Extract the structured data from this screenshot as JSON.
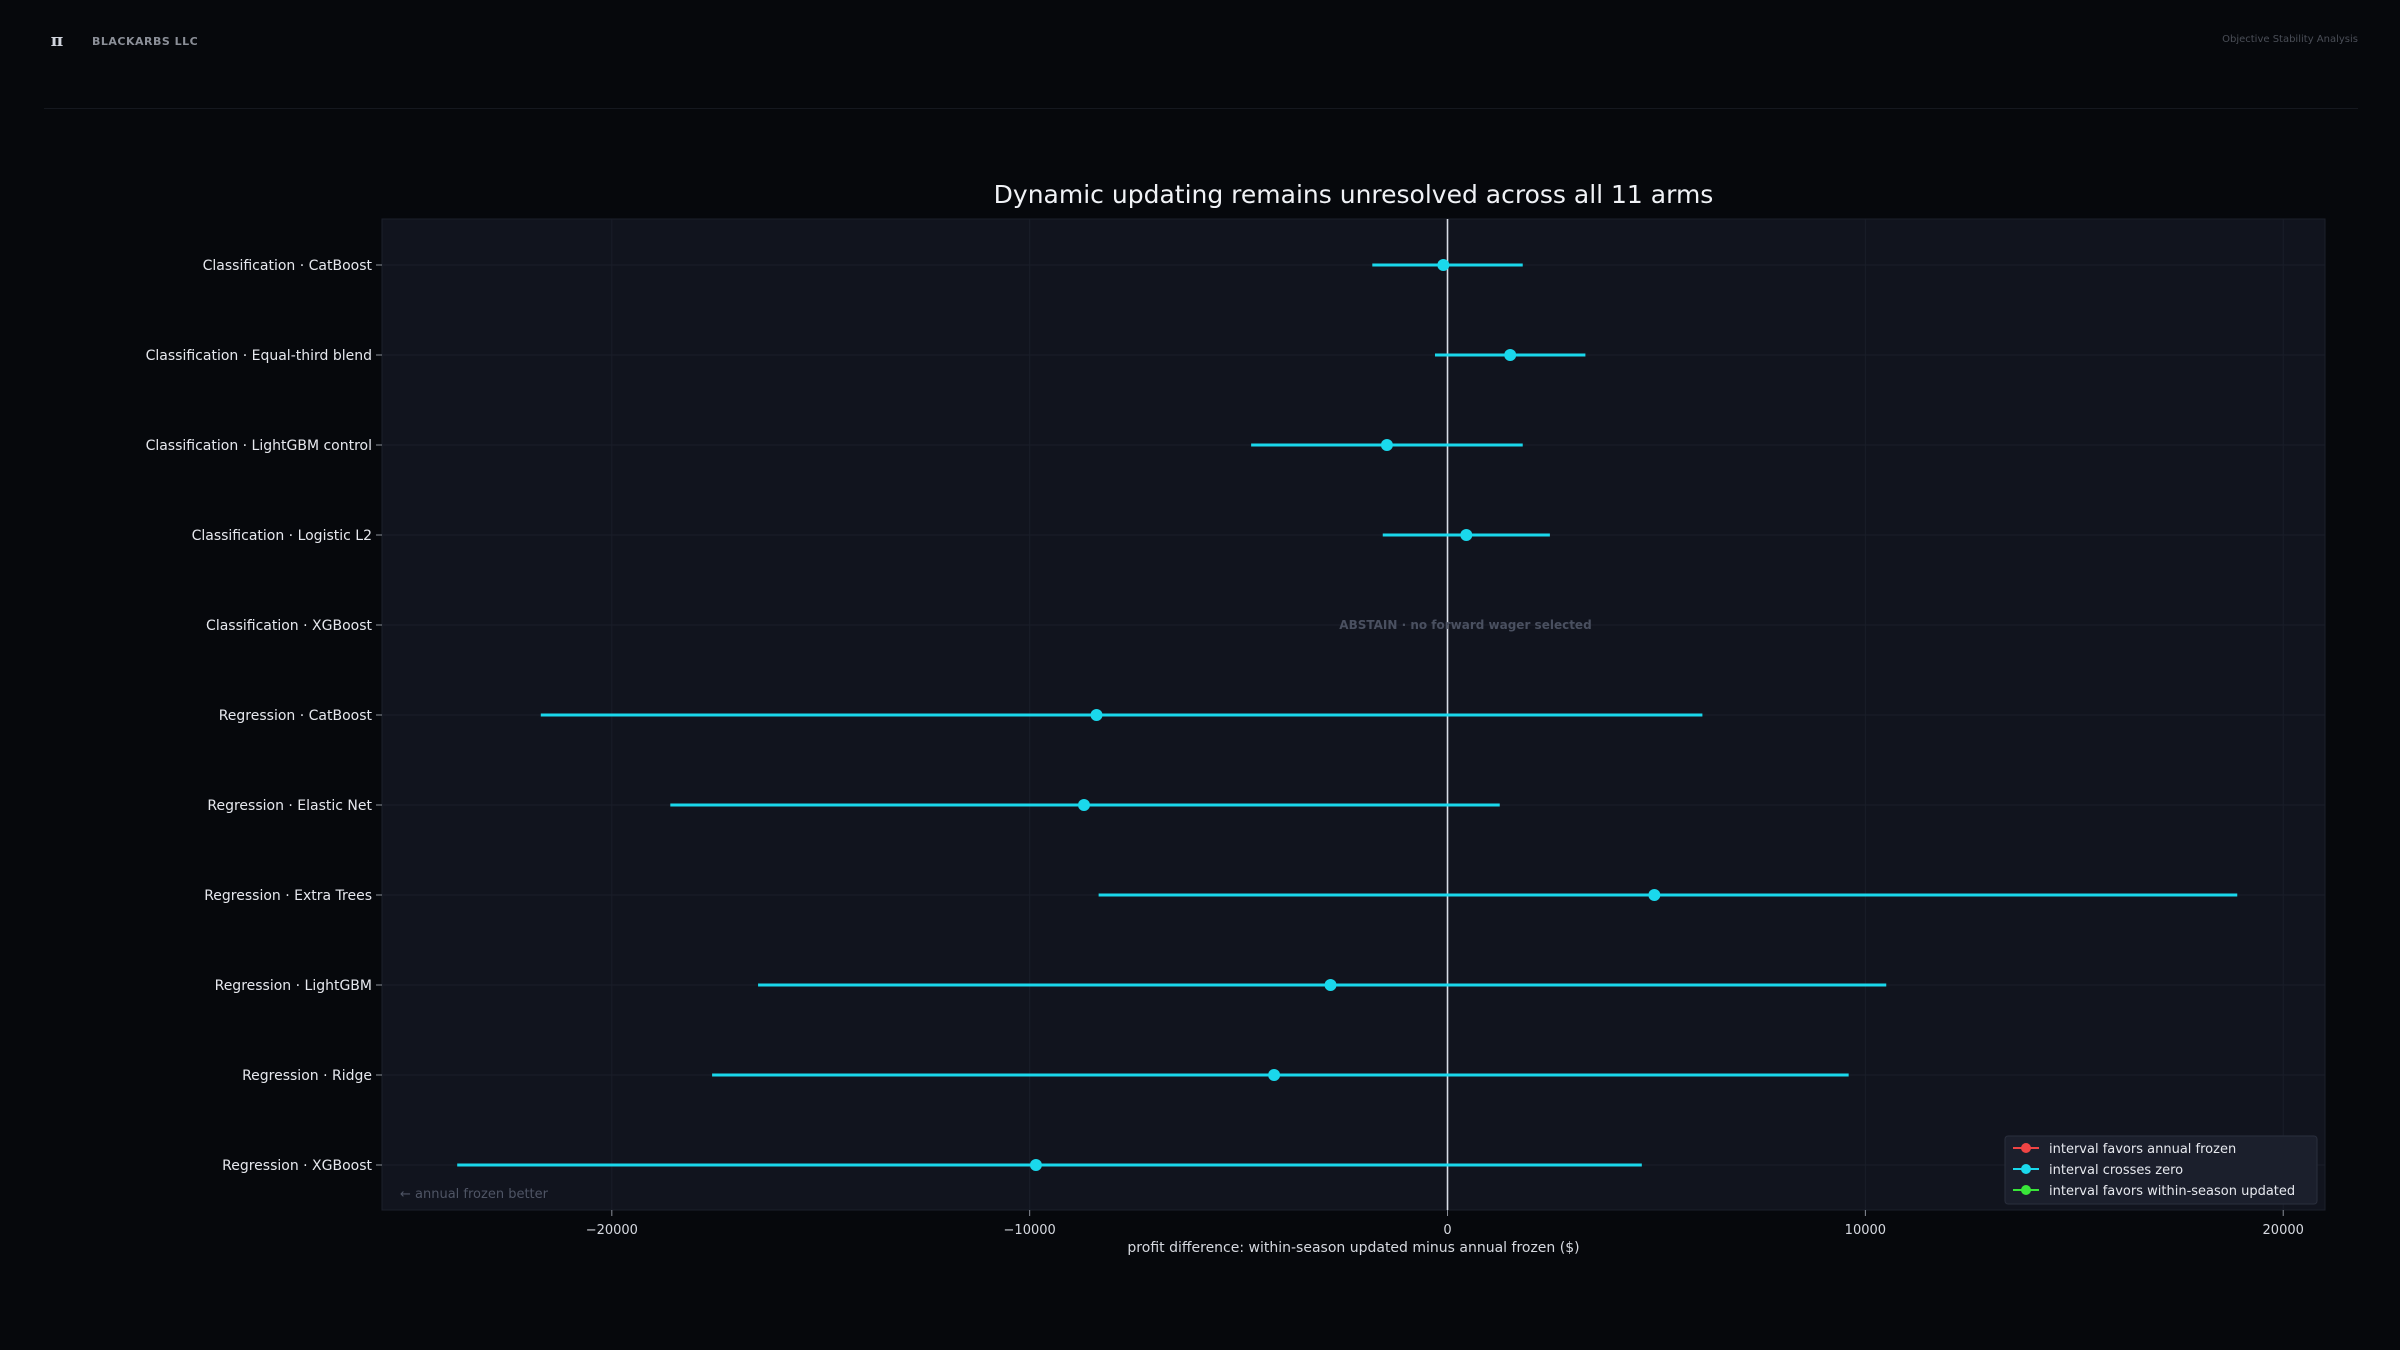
{
  "header": {
    "logo_glyph": "π",
    "brand_name": "BLACKARBS LLC",
    "page_label": "Objective Stability Analysis"
  },
  "colors": {
    "background": "#06080c",
    "plot_bg": "#11141e",
    "crosses_zero": "#1ad8ec",
    "favors_annual": "#ef4444",
    "favors_updated": "#39e639",
    "zero_line": "#d8dde6"
  },
  "chart_data": {
    "type": "forest",
    "title": "Dynamic updating remains unresolved across all 11 arms",
    "xlabel": "profit difference: within-season updated minus annual frozen ($)",
    "xlim": [
      -25500,
      21000
    ],
    "xticks": [
      -20000,
      -10000,
      0,
      10000,
      20000
    ],
    "xtick_labels": [
      "−20000",
      "−10000",
      "0",
      "10000",
      "20000"
    ],
    "grid": true,
    "legend_position": "bottom-right",
    "corner_note": "← annual frozen better",
    "abstain_text": "ABSTAIN · no forward wager selected",
    "legend": [
      {
        "label": "interval favors annual frozen",
        "color": "#ef4444"
      },
      {
        "label": "interval crosses zero",
        "color": "#1ad8ec"
      },
      {
        "label": "interval favors within-season updated",
        "color": "#39e639"
      }
    ],
    "arms": [
      {
        "label": "Classification · CatBoost",
        "estimate": -100,
        "low": -1800,
        "high": 1800,
        "status": "crosses"
      },
      {
        "label": "Classification · Equal-third blend",
        "estimate": 1500,
        "low": -300,
        "high": 3300,
        "status": "crosses"
      },
      {
        "label": "Classification · LightGBM control",
        "estimate": -1450,
        "low": -4700,
        "high": 1800,
        "status": "crosses"
      },
      {
        "label": "Classification · Logistic L2",
        "estimate": 450,
        "low": -1550,
        "high": 2450,
        "status": "crosses"
      },
      {
        "label": "Classification · XGBoost",
        "estimate": null,
        "low": null,
        "high": null,
        "status": "abstain"
      },
      {
        "label": "Regression · CatBoost",
        "estimate": -8400,
        "low": -21700,
        "high": 6100,
        "status": "crosses"
      },
      {
        "label": "Regression · Elastic Net",
        "estimate": -8700,
        "low": -18600,
        "high": 1250,
        "status": "crosses"
      },
      {
        "label": "Regression · Extra Trees",
        "estimate": 4950,
        "low": -8350,
        "high": 18900,
        "status": "crosses"
      },
      {
        "label": "Regression · LightGBM",
        "estimate": -2800,
        "low": -16500,
        "high": 10500,
        "status": "crosses"
      },
      {
        "label": "Regression · Ridge",
        "estimate": -4150,
        "low": -17600,
        "high": 9600,
        "status": "crosses"
      },
      {
        "label": "Regression · XGBoost",
        "estimate": -9850,
        "low": -23700,
        "high": 4650,
        "status": "crosses"
      }
    ]
  }
}
